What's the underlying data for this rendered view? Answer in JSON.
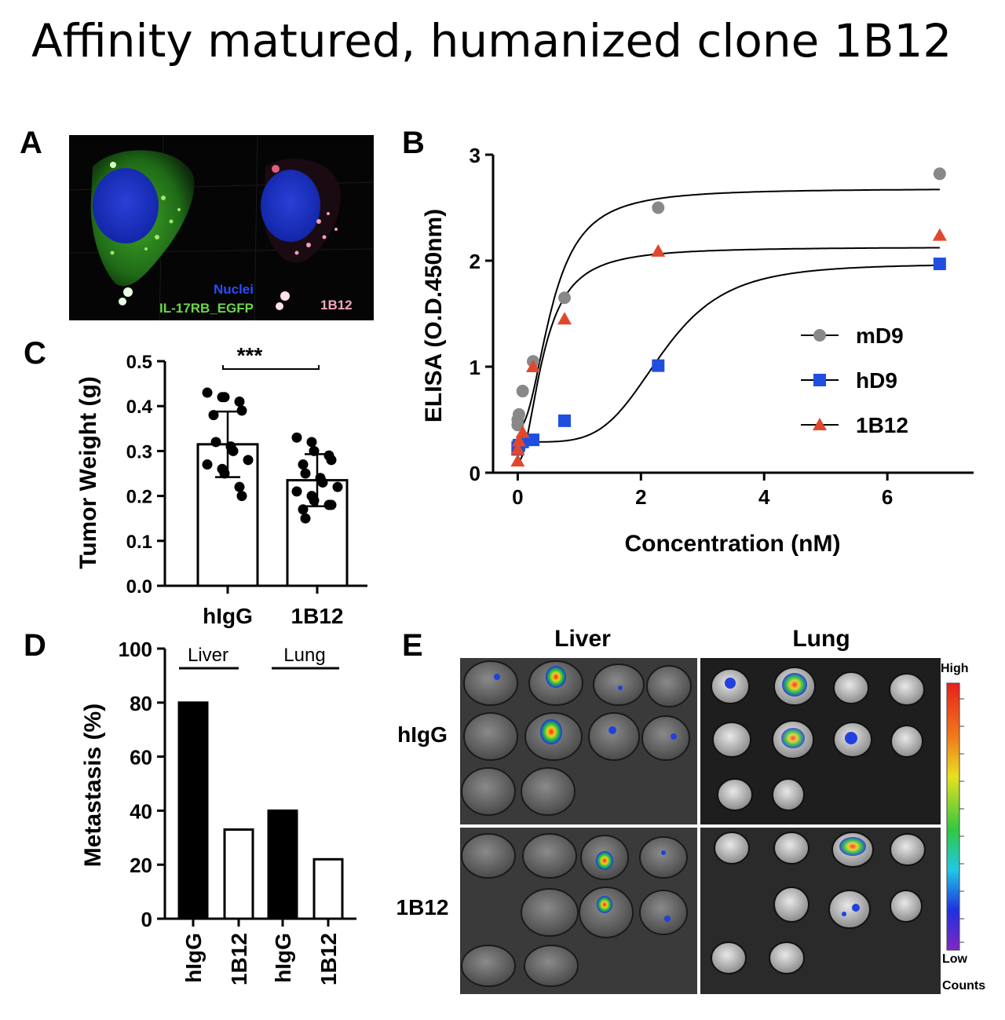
{
  "title": "Affinity matured, humanized clone 1B12",
  "panels": {
    "A": {
      "label": "A",
      "micrograph_labels": {
        "nuclei": "Nuclei",
        "egfp": "IL-17RB_EGFP",
        "clone": "1B12"
      }
    },
    "B": {
      "label": "B"
    },
    "C": {
      "label": "C",
      "significance": "***"
    },
    "D": {
      "label": "D",
      "group_labels": {
        "liver": "Liver",
        "lung": "Lung"
      }
    },
    "E": {
      "label": "E",
      "col_labels": [
        "Liver",
        "Lung"
      ],
      "row_labels": [
        "hIgG",
        "1B12"
      ],
      "scale_labels": {
        "high": "High",
        "low": "Low",
        "counts": "Counts"
      }
    }
  },
  "chart_data": [
    {
      "id": "B",
      "type": "scatter",
      "xlabel": "Concentration (nM)",
      "ylabel": "ELISA (O.D.450nm)",
      "xlim": [
        -0.4,
        7.4
      ],
      "ylim": [
        0,
        3
      ],
      "xticks": [
        0,
        2,
        4,
        6
      ],
      "yticks": [
        0,
        1,
        2,
        3
      ],
      "legend_position": "right",
      "series": [
        {
          "name": "mD9",
          "marker": "circle",
          "color": "#888888",
          "points": [
            [
              0,
              0.45
            ],
            [
              0,
              0.5
            ],
            [
              0.02,
              0.55
            ],
            [
              0.08,
              0.77
            ],
            [
              0.25,
              1.05
            ],
            [
              0.76,
              1.65
            ],
            [
              2.28,
              2.5
            ],
            [
              6.85,
              2.82
            ]
          ],
          "fit": {
            "bottom": 0.42,
            "top": 2.68,
            "ec50": 0.55,
            "hill": 2.2
          }
        },
        {
          "name": "hD9",
          "marker": "square",
          "color": "#1f4fe0",
          "points": [
            [
              0,
              0.22
            ],
            [
              0,
              0.24
            ],
            [
              0.02,
              0.26
            ],
            [
              0.08,
              0.29
            ],
            [
              0.25,
              0.31
            ],
            [
              0.76,
              0.49
            ],
            [
              2.28,
              1.01
            ],
            [
              6.85,
              1.97
            ]
          ],
          "fit": {
            "bottom": 0.29,
            "top": 1.97,
            "ec50": 2.35,
            "hill": 4.5
          }
        },
        {
          "name": "1B12",
          "marker": "triangle",
          "color": "#e0482e",
          "points": [
            [
              0,
              0.11
            ],
            [
              0,
              0.22
            ],
            [
              0.02,
              0.3
            ],
            [
              0.08,
              0.38
            ],
            [
              0.25,
              1.0
            ],
            [
              0.76,
              1.45
            ],
            [
              2.28,
              2.09
            ],
            [
              6.85,
              2.24
            ]
          ],
          "fit": {
            "bottom": 0.1,
            "top": 2.13,
            "ec50": 0.42,
            "hill": 2.0
          }
        }
      ]
    },
    {
      "id": "C",
      "type": "bar",
      "ylabel": "Tumor Weight (g)",
      "ylim": [
        0,
        0.5
      ],
      "yticks": [
        "0.0",
        "0.1",
        "0.2",
        "0.3",
        "0.4",
        "0.5"
      ],
      "categories": [
        "hIgG",
        "1B12"
      ],
      "values": [
        0.315,
        0.235
      ],
      "errors": [
        0.073,
        0.058
      ],
      "points": [
        [
          0.43,
          0.42,
          0.42,
          0.41,
          0.39,
          0.38,
          0.32,
          0.31,
          0.3,
          0.28,
          0.27,
          0.26,
          0.25,
          0.22,
          0.2
        ],
        [
          0.33,
          0.32,
          0.3,
          0.29,
          0.28,
          0.27,
          0.25,
          0.24,
          0.23,
          0.22,
          0.21,
          0.2,
          0.19,
          0.18,
          0.18,
          0.17,
          0.15
        ]
      ]
    },
    {
      "id": "D",
      "type": "bar",
      "ylabel": "Metastasis (%)",
      "ylim": [
        0,
        100
      ],
      "yticks": [
        0,
        20,
        40,
        60,
        80,
        100
      ],
      "categories": [
        "hIgG",
        "1B12",
        "hIgG",
        "1B12"
      ],
      "values": [
        80,
        33,
        40,
        22
      ],
      "colors": [
        "#000000",
        "#ffffff",
        "#000000",
        "#ffffff"
      ]
    }
  ]
}
